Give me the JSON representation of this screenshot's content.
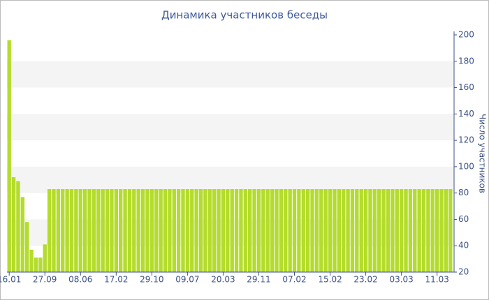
{
  "chart_data": {
    "type": "bar",
    "title": "Динамика участников беседы",
    "y_label": "Число участников",
    "categories": [
      "16.01",
      null,
      null,
      null,
      null,
      null,
      null,
      null,
      "27.09",
      null,
      null,
      null,
      null,
      null,
      null,
      null,
      "08.06",
      null,
      null,
      null,
      null,
      null,
      null,
      null,
      "17.02",
      null,
      null,
      null,
      null,
      null,
      null,
      null,
      "29.10",
      null,
      null,
      null,
      null,
      null,
      null,
      null,
      "09.07",
      null,
      null,
      null,
      null,
      null,
      null,
      null,
      "20.03",
      null,
      null,
      null,
      null,
      null,
      null,
      null,
      "29.11",
      null,
      null,
      null,
      null,
      null,
      null,
      null,
      "07.02",
      null,
      null,
      null,
      null,
      null,
      null,
      null,
      "15.02",
      null,
      null,
      null,
      null,
      null,
      null,
      null,
      "23.02",
      null,
      null,
      null,
      null,
      null,
      null,
      null,
      "03.03",
      null,
      null,
      null,
      null,
      null,
      null,
      null,
      "11.03",
      null,
      null,
      null
    ],
    "values": [
      196,
      92,
      89,
      77,
      58,
      37,
      31,
      31,
      41,
      83,
      83,
      83,
      83,
      83,
      83,
      83,
      83,
      83,
      83,
      83,
      83,
      83,
      83,
      83,
      83,
      83,
      83,
      83,
      83,
      83,
      83,
      83,
      83,
      83,
      83,
      83,
      83,
      83,
      83,
      83,
      83,
      83,
      83,
      83,
      83,
      83,
      83,
      83,
      83,
      83,
      83,
      83,
      83,
      83,
      83,
      83,
      83,
      83,
      83,
      83,
      83,
      83,
      83,
      83,
      83,
      83,
      83,
      83,
      83,
      83,
      83,
      83,
      83,
      83,
      83,
      83,
      83,
      83,
      83,
      83,
      83,
      83,
      83,
      83,
      83,
      83,
      83,
      83,
      83,
      83,
      83,
      83,
      83,
      83,
      83,
      83,
      83,
      83,
      83,
      83
    ],
    "color": "#b4dc2c",
    "ylim": [
      20,
      200
    ],
    "yticks": [
      20,
      40,
      60,
      80,
      100,
      120,
      140,
      160,
      180,
      200
    ],
    "grid": true,
    "y_axis_side": "right"
  }
}
